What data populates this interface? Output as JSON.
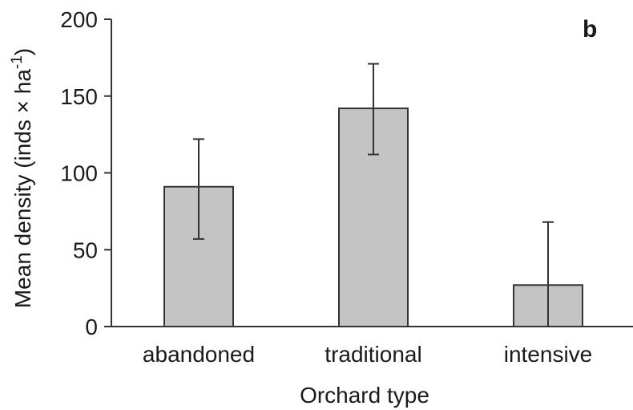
{
  "chart_data": {
    "type": "bar",
    "panel_label": "b",
    "categories": [
      "abandoned",
      "traditional",
      "intensive"
    ],
    "values": [
      91,
      142,
      27
    ],
    "error_upper": [
      122,
      171,
      68
    ],
    "error_lower": [
      57,
      112,
      0
    ],
    "xlabel": "Orchard type",
    "ylabel": "Mean density (inds × ha",
    "ylabel_superscript": "-1",
    "ylabel_suffix": ")",
    "ylim": [
      0,
      200
    ],
    "yticks": [
      0,
      50,
      100,
      150,
      200
    ],
    "grid": false,
    "bar_color": "#c4c4c4",
    "edge_color": "#333333"
  }
}
